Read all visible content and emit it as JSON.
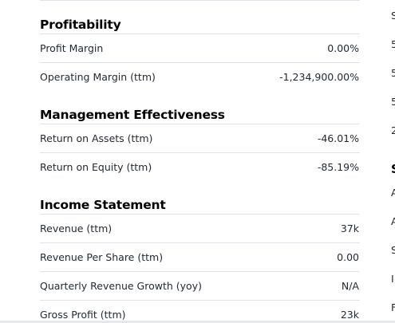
{
  "profitability": {
    "title": "Profitability",
    "rows": [
      {
        "label": "Profit Margin",
        "value": "0.00%"
      },
      {
        "label": "Operating Margin (ttm)",
        "value": "-1,234,900.00%"
      }
    ]
  },
  "management": {
    "title": "Management Effectiveness",
    "rows": [
      {
        "label": "Return on Assets (ttm)",
        "value": "-46.01%"
      },
      {
        "label": "Return on Equity (ttm)",
        "value": "-85.19%"
      }
    ]
  },
  "income": {
    "title": "Income Statement",
    "rows": [
      {
        "label": "Revenue (ttm)",
        "value": "37k"
      },
      {
        "label": "Revenue Per Share (ttm)",
        "value": "0.00"
      },
      {
        "label": "Quarterly Revenue Growth (yoy)",
        "value": "N/A"
      },
      {
        "label": "Gross Profit (ttm)",
        "value": "23k"
      }
    ]
  },
  "clipped_column": {
    "glyphs": [
      "S",
      "5",
      "5",
      "5",
      "2",
      "S",
      "A",
      "A",
      "S",
      "I",
      "F"
    ]
  }
}
